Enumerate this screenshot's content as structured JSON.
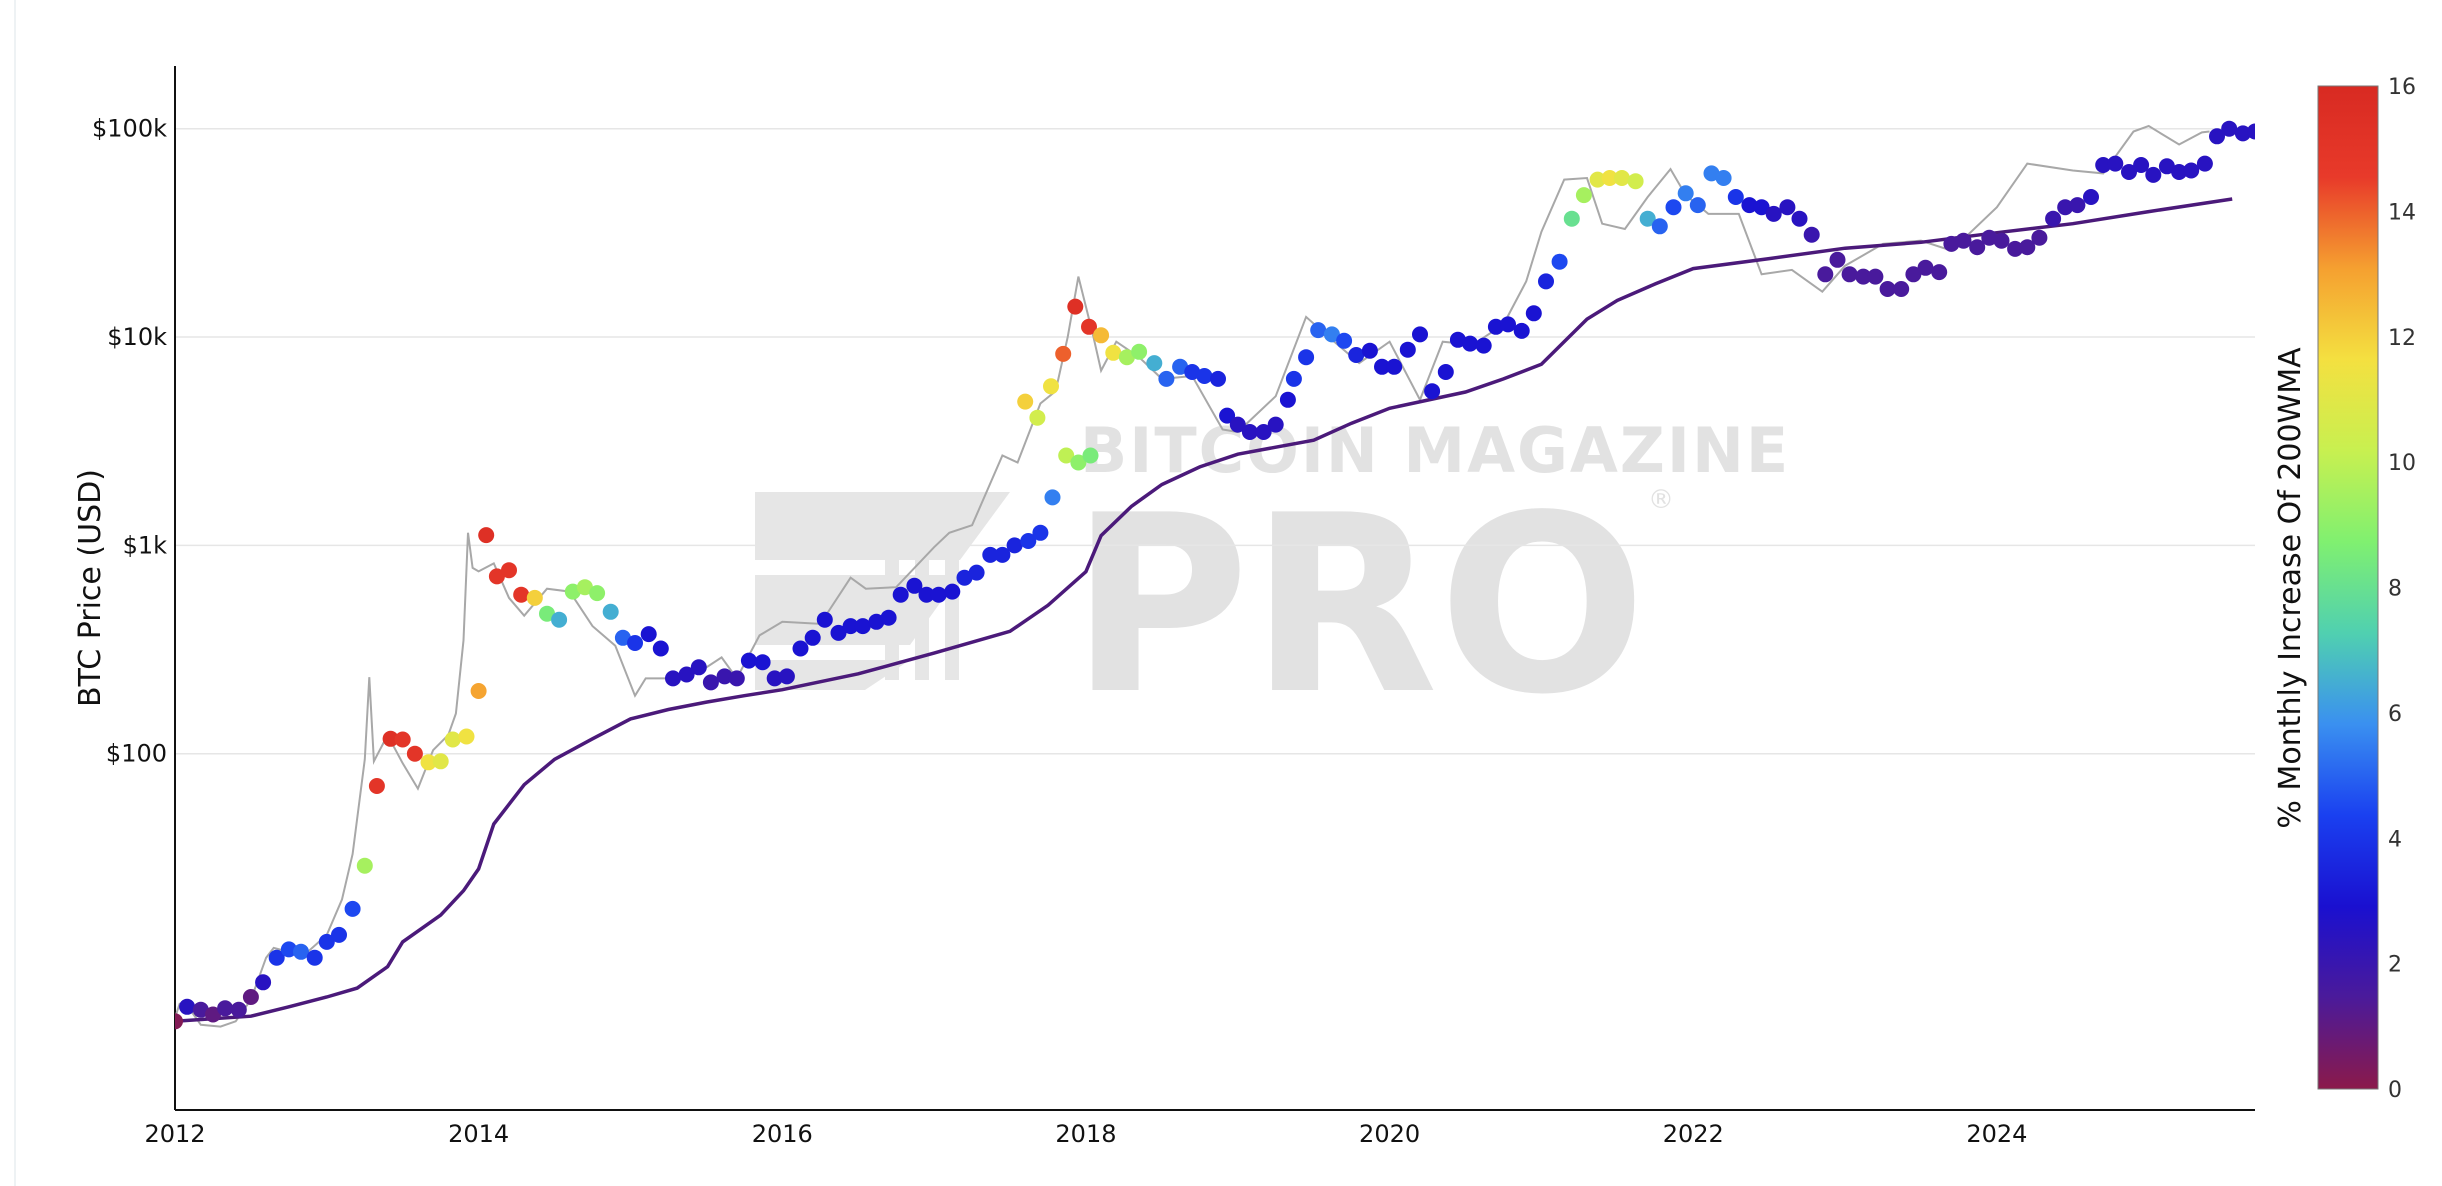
{
  "chart_data": {
    "type": "scatter",
    "y_scale": "log",
    "xlim": [
      2012,
      2025.7
    ],
    "ylim": [
      1.95,
      200000
    ],
    "ylabel": "BTC Price (USD)",
    "x_ticks": [
      2012,
      2014,
      2016,
      2018,
      2020,
      2022,
      2024
    ],
    "x_tick_labels": [
      "2012",
      "2014",
      "2016",
      "2018",
      "2020",
      "2022",
      "2024"
    ],
    "y_ticks": [
      100,
      1000,
      10000,
      100000
    ],
    "y_tick_labels": [
      "$100",
      "$1k",
      "$10k",
      "$100k"
    ],
    "grid": true,
    "colorbar": {
      "title": "% Monthly Increase Of 200WMA",
      "range": [
        0,
        16
      ],
      "ticks": [
        0,
        2,
        4,
        6,
        8,
        10,
        12,
        14,
        16
      ],
      "colors": [
        "#8b1a4a",
        "#4b1a9a",
        "#1a10d0",
        "#1a40f0",
        "#3a90f0",
        "#50d0b0",
        "#80f070",
        "#c8f050",
        "#f4e040",
        "#f5a030",
        "#e83a2a",
        "#d82a22"
      ]
    },
    "wma_line": {
      "color": "#4b1a7a",
      "points": [
        [
          2012.0,
          5.2
        ],
        [
          2012.5,
          5.5
        ],
        [
          2012.75,
          6.1
        ],
        [
          2013.0,
          6.8
        ],
        [
          2013.2,
          7.5
        ],
        [
          2013.4,
          9.5
        ],
        [
          2013.5,
          12.5
        ],
        [
          2013.75,
          16.8
        ],
        [
          2013.9,
          22
        ],
        [
          2014.0,
          28
        ],
        [
          2014.1,
          46
        ],
        [
          2014.3,
          71
        ],
        [
          2014.5,
          94
        ],
        [
          2014.75,
          118
        ],
        [
          2015.0,
          147
        ],
        [
          2015.25,
          163
        ],
        [
          2015.5,
          177
        ],
        [
          2015.75,
          190
        ],
        [
          2016.0,
          203
        ],
        [
          2016.5,
          242
        ],
        [
          2017.0,
          304
        ],
        [
          2017.5,
          387
        ],
        [
          2017.75,
          516
        ],
        [
          2018.0,
          748
        ],
        [
          2018.1,
          1115
        ],
        [
          2018.3,
          1540
        ],
        [
          2018.5,
          1960
        ],
        [
          2018.75,
          2380
        ],
        [
          2019.0,
          2740
        ],
        [
          2019.5,
          3200
        ],
        [
          2019.75,
          3860
        ],
        [
          2020.0,
          4550
        ],
        [
          2020.5,
          5450
        ],
        [
          2020.75,
          6300
        ],
        [
          2021.0,
          7400
        ],
        [
          2021.3,
          12200
        ],
        [
          2021.5,
          15000
        ],
        [
          2021.75,
          18000
        ],
        [
          2022.0,
          21300
        ],
        [
          2022.5,
          23800
        ],
        [
          2023.0,
          26700
        ],
        [
          2023.5,
          28500
        ],
        [
          2024.0,
          31700
        ],
        [
          2024.5,
          35000
        ],
        [
          2025.0,
          40000
        ],
        [
          2025.55,
          46000
        ]
      ]
    },
    "price_line": {
      "color": "#a8a8a8",
      "points": [
        [
          2012.0,
          5.4
        ],
        [
          2012.03,
          6.3
        ],
        [
          2012.1,
          5.9
        ],
        [
          2012.17,
          5.0
        ],
        [
          2012.3,
          4.9
        ],
        [
          2012.4,
          5.2
        ],
        [
          2012.5,
          6.6
        ],
        [
          2012.6,
          10.5
        ],
        [
          2012.65,
          11.7
        ],
        [
          2012.75,
          11.2
        ],
        [
          2012.85,
          10.8
        ],
        [
          2013.0,
          13.5
        ],
        [
          2013.1,
          20
        ],
        [
          2013.17,
          33
        ],
        [
          2013.25,
          94
        ],
        [
          2013.28,
          233
        ],
        [
          2013.31,
          92
        ],
        [
          2013.4,
          123
        ],
        [
          2013.5,
          90
        ],
        [
          2013.6,
          68
        ],
        [
          2013.7,
          104
        ],
        [
          2013.8,
          123
        ],
        [
          2013.85,
          156
        ],
        [
          2013.9,
          350
        ],
        [
          2013.93,
          1150
        ],
        [
          2013.96,
          780
        ],
        [
          2014.0,
          750
        ],
        [
          2014.1,
          820
        ],
        [
          2014.2,
          560
        ],
        [
          2014.3,
          460
        ],
        [
          2014.45,
          620
        ],
        [
          2014.6,
          600
        ],
        [
          2014.75,
          410
        ],
        [
          2014.9,
          330
        ],
        [
          2015.03,
          190
        ],
        [
          2015.1,
          230
        ],
        [
          2015.3,
          230
        ],
        [
          2015.5,
          260
        ],
        [
          2015.6,
          290
        ],
        [
          2015.7,
          230
        ],
        [
          2015.85,
          370
        ],
        [
          2016.0,
          430
        ],
        [
          2016.25,
          420
        ],
        [
          2016.45,
          700
        ],
        [
          2016.55,
          620
        ],
        [
          2016.75,
          630
        ],
        [
          2017.0,
          980
        ],
        [
          2017.1,
          1150
        ],
        [
          2017.25,
          1250
        ],
        [
          2017.45,
          2700
        ],
        [
          2017.55,
          2500
        ],
        [
          2017.7,
          4800
        ],
        [
          2017.8,
          5500
        ],
        [
          2017.88,
          10000
        ],
        [
          2017.95,
          19500
        ],
        [
          2018.0,
          14000
        ],
        [
          2018.05,
          10000
        ],
        [
          2018.1,
          6900
        ],
        [
          2018.2,
          9500
        ],
        [
          2018.35,
          8000
        ],
        [
          2018.5,
          6300
        ],
        [
          2018.7,
          6500
        ],
        [
          2018.9,
          3600
        ],
        [
          2019.0,
          3500
        ],
        [
          2019.25,
          5200
        ],
        [
          2019.45,
          12500
        ],
        [
          2019.6,
          10000
        ],
        [
          2019.8,
          7500
        ],
        [
          2020.0,
          9500
        ],
        [
          2020.2,
          5000
        ],
        [
          2020.35,
          9500
        ],
        [
          2020.55,
          9200
        ],
        [
          2020.75,
          11500
        ],
        [
          2020.9,
          18500
        ],
        [
          2021.0,
          32000
        ],
        [
          2021.15,
          57000
        ],
        [
          2021.3,
          58000
        ],
        [
          2021.4,
          35000
        ],
        [
          2021.55,
          33000
        ],
        [
          2021.7,
          47000
        ],
        [
          2021.85,
          64000
        ],
        [
          2021.95,
          48000
        ],
        [
          2022.1,
          39000
        ],
        [
          2022.3,
          39000
        ],
        [
          2022.45,
          20000
        ],
        [
          2022.65,
          21000
        ],
        [
          2022.85,
          16500
        ],
        [
          2023.0,
          22000
        ],
        [
          2023.25,
          28000
        ],
        [
          2023.5,
          29000
        ],
        [
          2023.7,
          26000
        ],
        [
          2024.0,
          42000
        ],
        [
          2024.2,
          68000
        ],
        [
          2024.5,
          63000
        ],
        [
          2024.7,
          61000
        ],
        [
          2024.9,
          97000
        ],
        [
          2025.0,
          103000
        ],
        [
          2025.2,
          84000
        ],
        [
          2025.35,
          96000
        ],
        [
          2025.4,
          97000
        ]
      ]
    },
    "markers": [
      [
        2012.0,
        5.2,
        0.2
      ],
      [
        2012.08,
        6.1,
        2.5
      ],
      [
        2012.17,
        5.9,
        1.5
      ],
      [
        2012.25,
        5.6,
        1.0
      ],
      [
        2012.33,
        6.0,
        1.5
      ],
      [
        2012.42,
        5.9,
        1.5
      ],
      [
        2012.5,
        6.8,
        1.0
      ],
      [
        2012.58,
        8.0,
        2.5
      ],
      [
        2012.67,
        10.5,
        4.0
      ],
      [
        2012.75,
        11.5,
        4.5
      ],
      [
        2012.83,
        11.2,
        5.0
      ],
      [
        2012.92,
        10.5,
        4.0
      ],
      [
        2013.0,
        12.5,
        4.0
      ],
      [
        2013.08,
        13.5,
        4.0
      ],
      [
        2013.17,
        18.0,
        4.5
      ],
      [
        2013.25,
        29.0,
        9.5
      ],
      [
        2013.33,
        70.0,
        15.0
      ],
      [
        2013.42,
        118.0,
        15.5
      ],
      [
        2013.5,
        117.0,
        15.0
      ],
      [
        2013.58,
        100.0,
        15.0
      ],
      [
        2013.67,
        91.0,
        11.5
      ],
      [
        2013.75,
        92.0,
        11.0
      ],
      [
        2013.83,
        117.0,
        11.0
      ],
      [
        2013.92,
        121.0,
        11.5
      ],
      [
        2014.0,
        200.0,
        13.0
      ],
      [
        2014.05,
        1120.0,
        15.5
      ],
      [
        2014.12,
        710.0,
        15.0
      ],
      [
        2014.2,
        760.0,
        15.0
      ],
      [
        2014.28,
        580.0,
        15.0
      ],
      [
        2014.37,
        560.0,
        12.0
      ],
      [
        2014.45,
        470.0,
        8.5
      ],
      [
        2014.53,
        440.0,
        6.5
      ],
      [
        2014.62,
        600.0,
        9.0
      ],
      [
        2014.7,
        630.0,
        9.5
      ],
      [
        2014.78,
        590.0,
        9.0
      ],
      [
        2014.87,
        480.0,
        6.5
      ],
      [
        2014.95,
        360.0,
        5.0
      ],
      [
        2015.03,
        340.0,
        4.0
      ],
      [
        2015.12,
        375.0,
        3.0
      ],
      [
        2015.2,
        320.0,
        3.0
      ],
      [
        2015.28,
        230.0,
        2.5
      ],
      [
        2015.37,
        240.0,
        2.5
      ],
      [
        2015.45,
        260.0,
        2.5
      ],
      [
        2015.53,
        220.0,
        2.0
      ],
      [
        2015.62,
        235.0,
        2.0
      ],
      [
        2015.7,
        230.0,
        2.0
      ],
      [
        2015.78,
        280.0,
        3.0
      ],
      [
        2015.87,
        275.0,
        3.0
      ],
      [
        2015.95,
        230.0,
        2.5
      ],
      [
        2016.03,
        235.0,
        2.5
      ],
      [
        2016.12,
        320.0,
        3.0
      ],
      [
        2016.2,
        360.0,
        3.0
      ],
      [
        2016.28,
        440.0,
        3.0
      ],
      [
        2016.37,
        380.0,
        3.0
      ],
      [
        2016.45,
        410.0,
        3.0
      ],
      [
        2016.53,
        410.0,
        3.0
      ],
      [
        2016.62,
        430.0,
        3.0
      ],
      [
        2016.7,
        450.0,
        3.0
      ],
      [
        2016.78,
        580.0,
        3.0
      ],
      [
        2016.87,
        640.0,
        3.0
      ],
      [
        2016.95,
        580.0,
        3.0
      ],
      [
        2017.03,
        580.0,
        3.0
      ],
      [
        2017.12,
        600.0,
        3.0
      ],
      [
        2017.2,
        700.0,
        3.5
      ],
      [
        2017.28,
        740.0,
        3.5
      ],
      [
        2017.37,
        900.0,
        3.5
      ],
      [
        2017.45,
        900.0,
        3.5
      ],
      [
        2017.53,
        1000.0,
        3.5
      ],
      [
        2017.62,
        1050.0,
        4.0
      ],
      [
        2017.7,
        1150.0,
        4.0
      ],
      [
        2017.78,
        1700.0,
        5.5
      ],
      [
        2017.87,
        2700.0,
        10.0
      ],
      [
        2017.95,
        2500.0,
        9.0
      ],
      [
        2018.03,
        2700.0,
        8.5
      ],
      [
        2017.6,
        4900.0,
        12.0
      ],
      [
        2017.68,
        4100.0,
        10.5
      ],
      [
        2017.77,
        5800.0,
        11.5
      ],
      [
        2017.85,
        8300.0,
        14.0
      ],
      [
        2017.93,
        14000.0,
        15.5
      ],
      [
        2018.02,
        11200.0,
        15.0
      ],
      [
        2018.1,
        10200.0,
        12.5
      ],
      [
        2018.18,
        8400.0,
        11.5
      ],
      [
        2018.27,
        8000.0,
        9.5
      ],
      [
        2018.35,
        8500.0,
        9.0
      ],
      [
        2018.45,
        7500.0,
        6.5
      ],
      [
        2018.53,
        6300.0,
        5.0
      ],
      [
        2018.62,
        7200.0,
        5.0
      ],
      [
        2018.7,
        6800.0,
        4.0
      ],
      [
        2018.78,
        6500.0,
        4.0
      ],
      [
        2018.87,
        6300.0,
        3.5
      ],
      [
        2018.93,
        4200.0,
        3.0
      ],
      [
        2019.0,
        3800.0,
        2.5
      ],
      [
        2019.08,
        3500.0,
        2.5
      ],
      [
        2019.17,
        3500.0,
        2.5
      ],
      [
        2019.25,
        3800.0,
        2.5
      ],
      [
        2019.33,
        5000.0,
        3.0
      ],
      [
        2019.37,
        6300.0,
        4.0
      ],
      [
        2019.45,
        8000.0,
        4.0
      ],
      [
        2019.53,
        10800.0,
        5.0
      ],
      [
        2019.62,
        10300.0,
        5.5
      ],
      [
        2019.7,
        9600.0,
        4.5
      ],
      [
        2019.78,
        8200.0,
        3.5
      ],
      [
        2019.87,
        8600.0,
        3.0
      ],
      [
        2019.95,
        7200.0,
        3.0
      ],
      [
        2020.03,
        7200.0,
        3.0
      ],
      [
        2020.12,
        8700.0,
        3.0
      ],
      [
        2020.2,
        10300.0,
        3.0
      ],
      [
        2020.28,
        5500.0,
        3.0
      ],
      [
        2020.37,
        6800.0,
        3.0
      ],
      [
        2020.45,
        9700.0,
        3.0
      ],
      [
        2020.53,
        9300.0,
        3.0
      ],
      [
        2020.62,
        9100.0,
        3.0
      ],
      [
        2020.7,
        11200.0,
        3.0
      ],
      [
        2020.78,
        11500.0,
        3.0
      ],
      [
        2020.87,
        10700.0,
        3.0
      ],
      [
        2020.95,
        13000.0,
        3.0
      ],
      [
        2021.03,
        18500.0,
        3.5
      ],
      [
        2021.12,
        23000.0,
        4.5
      ],
      [
        2021.2,
        37000.0,
        8.0
      ],
      [
        2021.28,
        48000.0,
        9.5
      ],
      [
        2021.37,
        57000.0,
        11.0
      ],
      [
        2021.45,
        58000.0,
        11.5
      ],
      [
        2021.53,
        58000.0,
        11.0
      ],
      [
        2021.62,
        56000.0,
        10.5
      ],
      [
        2021.7,
        37000.0,
        6.5
      ],
      [
        2021.78,
        34000.0,
        5.0
      ],
      [
        2021.87,
        42000.0,
        4.5
      ],
      [
        2021.95,
        49000.0,
        5.5
      ],
      [
        2022.03,
        43000.0,
        5.0
      ],
      [
        2022.12,
        61000.0,
        5.5
      ],
      [
        2022.2,
        58000.0,
        5.5
      ],
      [
        2022.28,
        47000.0,
        4.0
      ],
      [
        2022.37,
        43000.0,
        3.0
      ],
      [
        2022.45,
        42000.0,
        3.0
      ],
      [
        2022.53,
        39000.0,
        2.5
      ],
      [
        2022.62,
        42000.0,
        2.5
      ],
      [
        2022.7,
        37000.0,
        2.5
      ],
      [
        2022.78,
        31000.0,
        2.0
      ],
      [
        2022.87,
        20000.0,
        1.5
      ],
      [
        2022.95,
        23500.0,
        1.5
      ],
      [
        2023.03,
        20000.0,
        1.5
      ],
      [
        2023.12,
        19500.0,
        1.5
      ],
      [
        2023.2,
        19500.0,
        1.5
      ],
      [
        2023.28,
        17000.0,
        1.5
      ],
      [
        2023.37,
        17000.0,
        1.5
      ],
      [
        2023.45,
        20000.0,
        1.5
      ],
      [
        2023.53,
        21500.0,
        1.5
      ],
      [
        2023.62,
        20500.0,
        1.5
      ],
      [
        2023.7,
        28000.0,
        1.5
      ],
      [
        2023.78,
        29000.0,
        1.5
      ],
      [
        2023.87,
        27000.0,
        1.5
      ],
      [
        2023.95,
        30000.0,
        1.5
      ],
      [
        2024.03,
        29000.0,
        1.5
      ],
      [
        2024.12,
        26500.0,
        1.5
      ],
      [
        2024.2,
        27000.0,
        1.5
      ],
      [
        2024.28,
        30000.0,
        1.5
      ],
      [
        2024.37,
        37000.0,
        2.0
      ],
      [
        2024.45,
        42000.0,
        2.0
      ],
      [
        2024.53,
        43000.0,
        2.0
      ],
      [
        2024.62,
        47000.0,
        2.5
      ],
      [
        2024.7,
        67000.0,
        2.5
      ],
      [
        2024.78,
        68000.0,
        2.5
      ],
      [
        2024.87,
        62000.0,
        2.5
      ],
      [
        2024.95,
        67000.0,
        2.5
      ],
      [
        2025.03,
        60000.0,
        2.5
      ],
      [
        2025.12,
        66000.0,
        2.5
      ],
      [
        2025.2,
        62000.0,
        2.5
      ],
      [
        2025.28,
        63000.0,
        2.5
      ],
      [
        2025.37,
        68000.0,
        2.5
      ],
      [
        2025.45,
        92000.0,
        2.5
      ],
      [
        2025.53,
        100000.0,
        2.5
      ],
      [
        2025.62,
        95000.0,
        2.5
      ],
      [
        2025.7,
        97000.0,
        2.5
      ]
    ]
  },
  "watermark": {
    "top": "BITCOIN MAGAZINE",
    "big": "PRO",
    "reg": "®"
  }
}
